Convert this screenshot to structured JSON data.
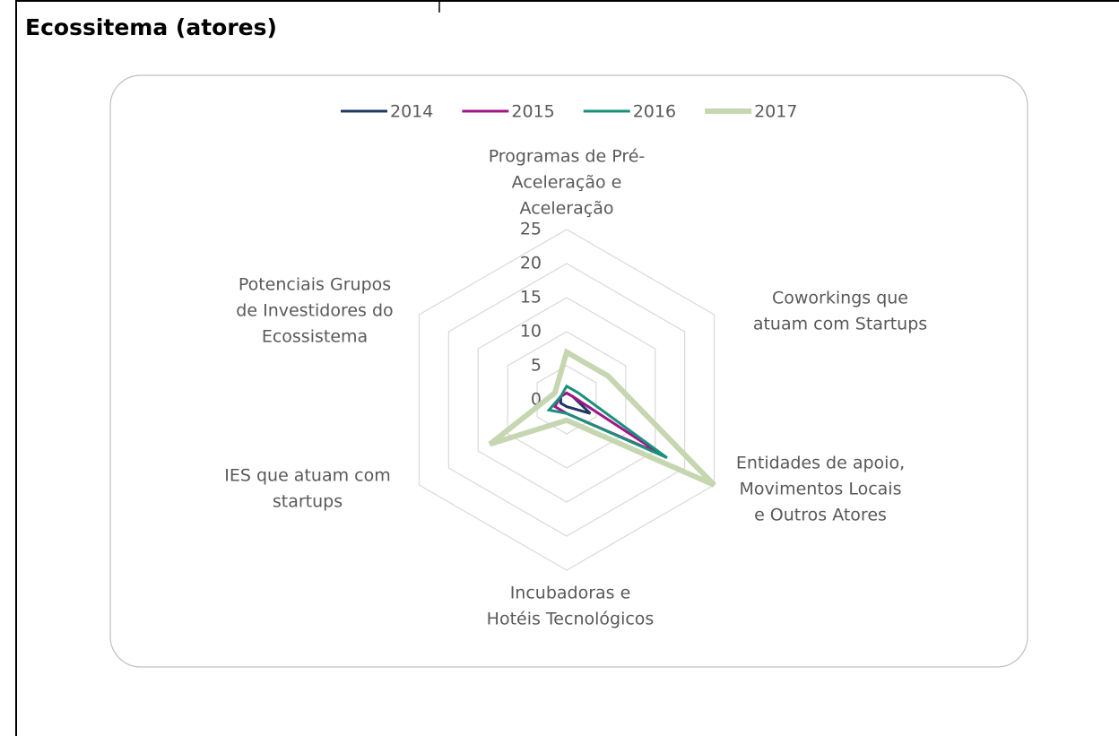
{
  "chart_data": {
    "type": "radar",
    "title": "Ecossitema (atores)",
    "categories": [
      [
        "Programas de Pré-",
        "Aceleração e",
        "Aceleração"
      ],
      [
        "Coworkings que",
        "atuam com Startups"
      ],
      [
        "Entidades de apoio,",
        "Movimentos Locais",
        "e Outros Atores"
      ],
      [
        "Incubadoras e",
        "Hotéis Tecnológicos"
      ],
      [
        "IES que atuam com",
        "startups"
      ],
      [
        "Potenciais Grupos",
        "de Investidores do",
        "Ecossistema"
      ]
    ],
    "series": [
      {
        "name": "2014",
        "color": "#1f3864",
        "values": [
          1,
          1,
          4,
          1,
          1,
          1
        ]
      },
      {
        "name": "2015",
        "color": "#a0168a",
        "values": [
          1,
          1,
          16,
          2,
          2,
          1
        ]
      },
      {
        "name": "2016",
        "color": "#1a8f7a",
        "values": [
          2,
          2,
          17,
          2,
          3,
          1
        ]
      },
      {
        "name": "2017",
        "color": "#c5d6b0",
        "values": [
          7,
          7,
          25,
          3,
          13,
          2
        ]
      }
    ],
    "ylim": [
      0,
      25
    ],
    "yticks": [
      0,
      5,
      10,
      15,
      20,
      25
    ],
    "grid": true,
    "legend": "top"
  }
}
